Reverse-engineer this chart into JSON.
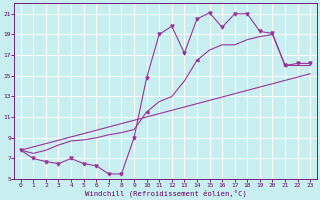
{
  "xlabel": "Windchill (Refroidissement éolien,°C)",
  "bg_color": "#c8eef0",
  "grid_color": "#ffffff",
  "line_color": "#993399",
  "xlim_min": -0.5,
  "xlim_max": 23.5,
  "ylim_min": 5,
  "ylim_max": 22,
  "xticks": [
    0,
    1,
    2,
    3,
    4,
    5,
    6,
    7,
    8,
    9,
    10,
    11,
    12,
    13,
    14,
    15,
    16,
    17,
    18,
    19,
    20,
    21,
    22,
    23
  ],
  "yticks": [
    5,
    7,
    9,
    11,
    13,
    15,
    17,
    19,
    21
  ],
  "line1_x": [
    0,
    1,
    2,
    3,
    4,
    5,
    6,
    7,
    8,
    9,
    10,
    11,
    12,
    13,
    14,
    15,
    16,
    17,
    18,
    19,
    20,
    21,
    22,
    23
  ],
  "line1_y": [
    7.8,
    7.0,
    6.7,
    6.5,
    7.0,
    6.5,
    6.3,
    5.5,
    5.5,
    9.0,
    14.8,
    19.0,
    19.8,
    17.2,
    20.5,
    21.1,
    19.7,
    21.0,
    21.0,
    19.3,
    19.1,
    16.0,
    16.2,
    16.2
  ],
  "line2_x": [
    0,
    1,
    2,
    3,
    4,
    5,
    6,
    7,
    8,
    9,
    10,
    11,
    12,
    13,
    14,
    15,
    16,
    17,
    18,
    19,
    20,
    21,
    22,
    23
  ],
  "line2_y": [
    7.8,
    7.5,
    7.8,
    8.3,
    8.7,
    8.8,
    9.0,
    9.3,
    9.5,
    9.8,
    11.5,
    12.5,
    13.0,
    14.5,
    16.5,
    17.5,
    18.0,
    18.0,
    18.5,
    18.8,
    19.0,
    16.0,
    16.0,
    16.0
  ],
  "line3_x": [
    0,
    23
  ],
  "line3_y": [
    7.8,
    15.2
  ]
}
